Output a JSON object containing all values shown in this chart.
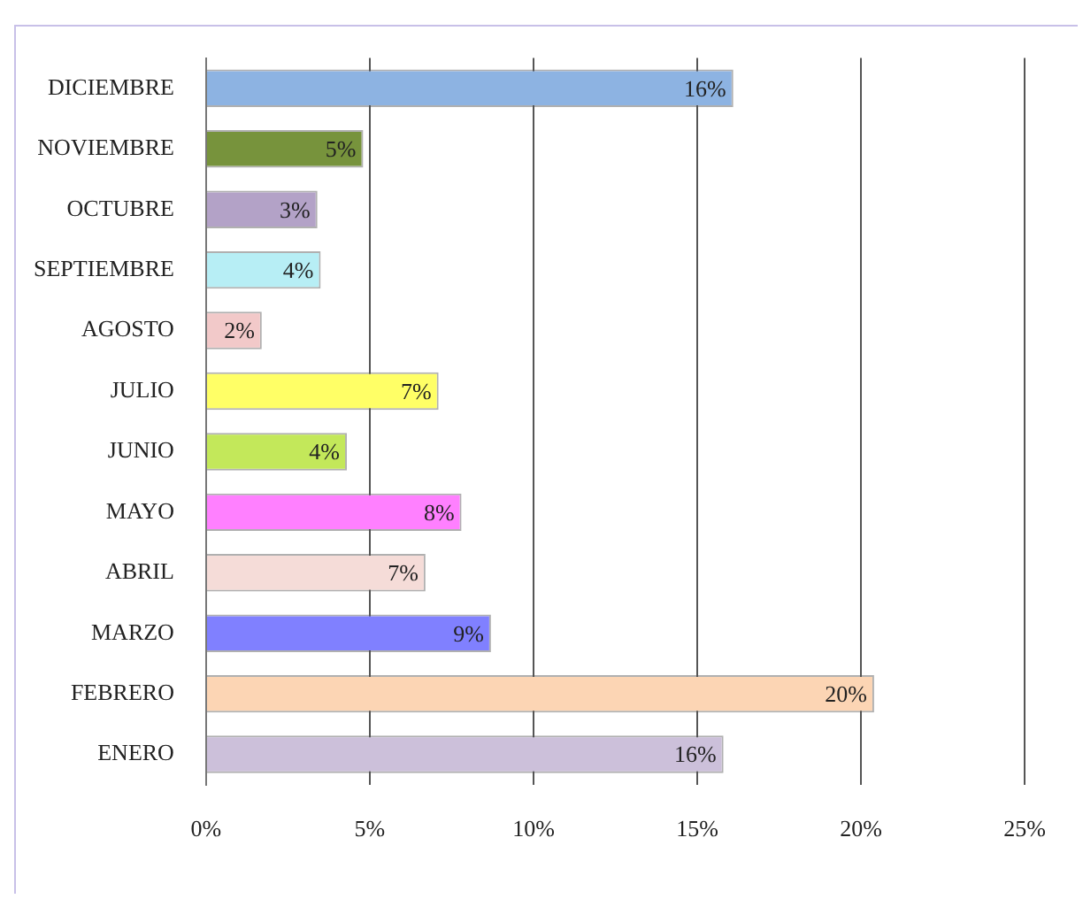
{
  "chart_data": {
    "type": "bar",
    "orientation": "horizontal",
    "categories": [
      "DICIEMBRE",
      "NOVIEMBRE",
      "OCTUBRE",
      "SEPTIEMBRE",
      "AGOSTO",
      "JULIO",
      "JUNIO",
      "MAYO",
      "ABRIL",
      "MARZO",
      "FEBRERO",
      "ENERO"
    ],
    "values": [
      16.1,
      4.8,
      3.4,
      3.5,
      1.7,
      7.1,
      4.3,
      7.8,
      6.7,
      8.7,
      20.4,
      15.8
    ],
    "value_labels": [
      "16%",
      "5%",
      "3%",
      "4%",
      "2%",
      "7%",
      "4%",
      "8%",
      "7%",
      "9%",
      "20%",
      "16%"
    ],
    "colors": [
      "#8db3e2",
      "#77933c",
      "#b3a2c7",
      "#b7eef5",
      "#f2c9c9",
      "#ffff66",
      "#c3e85a",
      "#ff80ff",
      "#f5dcd8",
      "#8080ff",
      "#fcd5b4",
      "#ccc0da"
    ],
    "xlim": [
      0,
      25
    ],
    "xticks": [
      {
        "value": 0,
        "label": "0%"
      },
      {
        "value": 5,
        "label": "5%"
      },
      {
        "value": 10,
        "label": "10%"
      },
      {
        "value": 15,
        "label": "15%"
      },
      {
        "value": 20,
        "label": "20%"
      },
      {
        "value": 25,
        "label": "25%"
      }
    ],
    "grid": "x",
    "legend": false
  }
}
